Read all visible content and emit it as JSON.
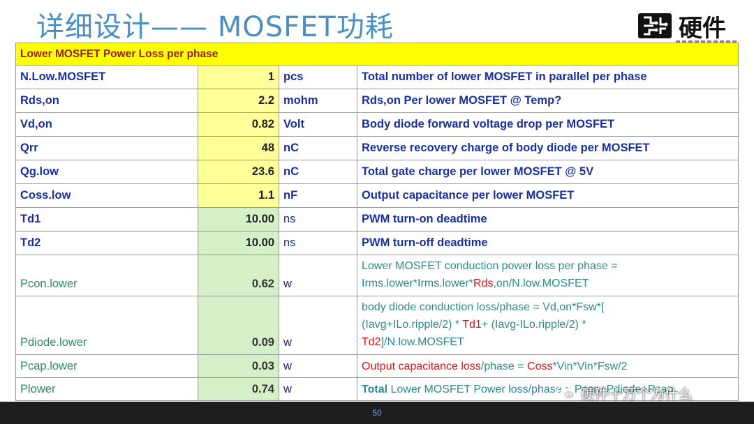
{
  "title": "详细设计—— MOSFET功耗",
  "logo_text": "硬件",
  "table": {
    "header": "Lower MOSFET Power Loss per phase",
    "rows": [
      {
        "name": "N.Low.MOSFET",
        "value": "1",
        "unit": "pcs",
        "desc": "Total number of lower MOSFET in parallel per phase"
      },
      {
        "name": "Rds,on",
        "value": "2.2",
        "unit": "mohm",
        "desc": "Rds,on Per lower MOSFET @ Temp?"
      },
      {
        "name": "Vd,on",
        "value": "0.82",
        "unit": "Volt",
        "desc": "Body diode forward voltage drop per MOSFET"
      },
      {
        "name": "Qrr",
        "value": "48",
        "unit": "nC",
        "desc": "Reverse recovery charge of body diode per MOSFET"
      },
      {
        "name": "Qg.low",
        "value": "23.6",
        "unit": "nC",
        "desc": "Total gate charge per lower MOSFET @ 5V"
      },
      {
        "name": "Coss.low",
        "value": "1.1",
        "unit": "nF",
        "desc": "Output capacitance per lower MOSFET"
      },
      {
        "name": "Td1",
        "value": "10.00",
        "unit": "ns",
        "desc": "PWM turn-on deadtime"
      },
      {
        "name": "Td2",
        "value": "10.00",
        "unit": "ns",
        "desc": "PWM turn-off deadtime"
      }
    ],
    "pcon": {
      "name": "Pcon.lower",
      "value": "0.62",
      "unit": "w",
      "desc_line1": "Lower MOSFET conduction power loss per phase =",
      "desc_line2_a": "Irms.lower*Irms.lower*",
      "desc_line2_red": "Rds",
      "desc_line2_b": ",on/N.low.MOSFET"
    },
    "pdiode": {
      "name": "Pdiode.lower",
      "value": "0.09",
      "unit": "w",
      "desc_line1": "body diode conduction loss/phase = Vd,on*Fsw*[",
      "desc_line2_a": "(Iavg+ILo.ripple/2) * ",
      "desc_line2_red": "Td1",
      "desc_line2_b": "+ (Iavg-ILo.ripple/2) *",
      "desc_line3_red": "Td2",
      "desc_line3_b": "]/N.low.MOSFET"
    },
    "pcap": {
      "name": "Pcap.lower",
      "value": "0.03",
      "unit": "w",
      "desc_red1": "Output capacitance loss",
      "desc_mid": "/phase = ",
      "desc_red2": "Coss",
      "desc_end": "*Vin*Vin*Fsw/2"
    },
    "plower": {
      "name": "Plower",
      "value": "0.74",
      "unit": "w",
      "desc_bold": "Total",
      "desc_rest": " Lower MOSFET Power loss/phase = Pcon+Pdiode+Pcap"
    }
  },
  "page_number": "50",
  "watermark": "硬件十万个为什么"
}
